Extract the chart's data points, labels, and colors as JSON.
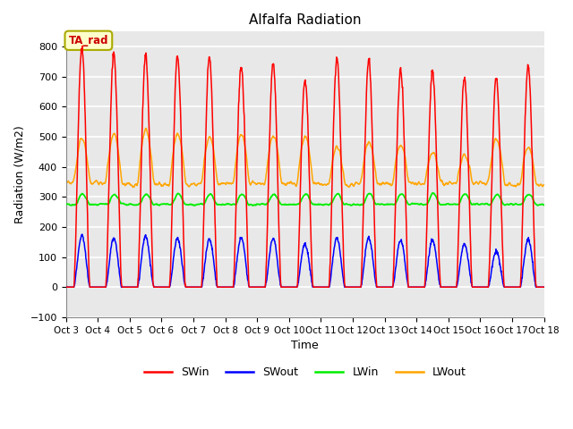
{
  "title": "Alfalfa Radiation",
  "xlabel": "Time",
  "ylabel": "Radiation (W/m2)",
  "ylim": [
    -100,
    850
  ],
  "xlim": [
    0,
    360
  ],
  "plot_bg_color": "#e8e8e8",
  "grid_color": "white",
  "colors": {
    "SWin": "red",
    "SWout": "blue",
    "LWin": "#00ee00",
    "LWout": "orange"
  },
  "annotation_text": "TA_rad",
  "annotation_bg": "#ffffcc",
  "annotation_border": "#aaaa00",
  "tick_labels": [
    "Oct 3",
    "Oct 4",
    "Oct 5",
    "Oct 6",
    "Oct 7",
    "Oct 8",
    "Oct 9",
    "Oct 10",
    "Oct 11",
    "Oct 12",
    "Oct 13",
    "Oct 14",
    "Oct 15",
    "Oct 16",
    "Oct 17",
    "Oct 18"
  ],
  "tick_positions": [
    0,
    24,
    48,
    72,
    96,
    120,
    144,
    168,
    192,
    216,
    240,
    264,
    288,
    312,
    336,
    360
  ],
  "n_days": 15,
  "SWin_peaks": [
    800,
    775,
    770,
    770,
    765,
    735,
    745,
    690,
    760,
    755,
    725,
    720,
    695,
    695,
    735
  ],
  "SWout_peaks": [
    172,
    163,
    168,
    163,
    158,
    163,
    163,
    143,
    163,
    163,
    156,
    156,
    143,
    118,
    158
  ],
  "LWout_night": [
    350,
    345,
    340,
    340,
    345,
    345,
    345,
    345,
    340,
    345,
    345,
    345,
    345,
    345,
    340
  ],
  "LWout_day_peaks": [
    495,
    510,
    525,
    510,
    500,
    510,
    505,
    500,
    465,
    480,
    475,
    445,
    440,
    495,
    465
  ],
  "LWin_base": 275,
  "LWin_day_amp": 35,
  "seed": 12
}
